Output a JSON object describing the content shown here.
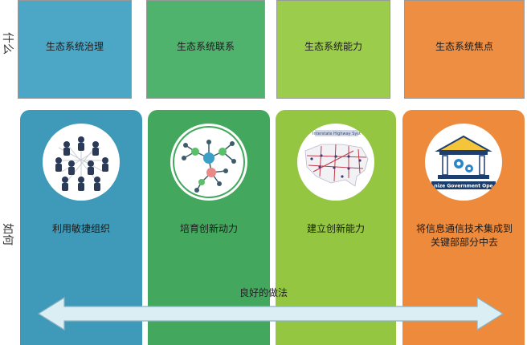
{
  "rows": {
    "what": "什么",
    "how": "如何"
  },
  "columns": [
    {
      "title": "生态系统治理",
      "text": "利用敏捷组织",
      "icon": "people-network-icon",
      "top_color": "#4ca6c6",
      "card_color": "#3e9ab8"
    },
    {
      "title": "生态系统联系",
      "text": "培育创新动力",
      "icon": "node-network-icon",
      "top_color": "#4fb36d",
      "card_color": "#43a85e"
    },
    {
      "title": "生态系统能力",
      "text": "建立创新能力",
      "icon": "usa-highway-map-icon",
      "top_color": "#9ccc4b",
      "card_color": "#94c641"
    },
    {
      "title": "生态系统焦点",
      "text": "将信息通信技术集成到关键部部分中去",
      "icon": "government-building-icon",
      "top_color": "#ee8e42",
      "card_color": "#ed8a3c",
      "icon_caption": "nize Government Ope"
    }
  ],
  "map_caption": "Interstate Highway Syst",
  "arrow_label": "良好的做法",
  "colors": {
    "arrow_fill": "#dbeef4",
    "arrow_stroke": "#8ab3c5"
  }
}
